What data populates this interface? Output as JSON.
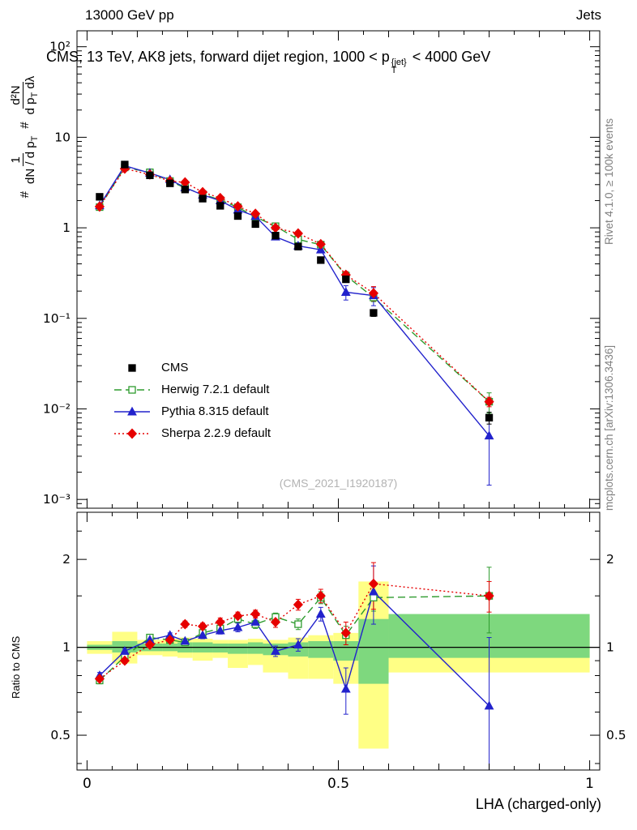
{
  "header": {
    "left": "13000 GeV pp",
    "right": "Jets"
  },
  "title": {
    "pre": "CMS, 13 TeV, AK8 jets, forward dijet region, 1000 < p",
    "sup": "{jet}",
    "sub": "T",
    "post": " < 4000 GeV"
  },
  "axis": {
    "ylabel": {
      "hash1": "#",
      "frac1_num": "1",
      "frac1_den_a": "dN / d p",
      "frac1_den_sub": "T",
      "hash2": "#",
      "frac2_num": "d²N",
      "frac2_den_a": "d p",
      "frac2_den_sub": "T",
      "frac2_den_b": " dλ"
    },
    "ratio_ylabel": "Ratio to CMS",
    "xlabel": "LHA (charged-only)"
  },
  "notes": {
    "rivet": "Rivet 4.1.0, ≥ 100k events",
    "mcplots": "mcplots.cern.ch [arXiv:1306.3436]",
    "watermark": "(CMS_2021_I1920187)"
  },
  "chart_data": {
    "type": "line",
    "title": "CMS, 13 TeV, AK8 jets, forward dijet region, 1000 < p_T^{jet} < 4000 GeV",
    "xlabel": "LHA (charged-only)",
    "ylabel": "# 1/(dN/dp_T) # d2N/(dp_T dlambda)",
    "ratio_ylabel": "Ratio to CMS",
    "legend_position": "middle-left",
    "grid": false,
    "ylog": true,
    "ylim": [
      0.0008,
      150
    ],
    "ratio_ylog": true,
    "ratio_ylim": [
      0.38,
      2.9
    ],
    "xlim": [
      0,
      1
    ],
    "x_axis_range": [
      -0.02,
      1.02
    ],
    "x": [
      0.025,
      0.075,
      0.125,
      0.165,
      0.195,
      0.23,
      0.265,
      0.3,
      0.335,
      0.375,
      0.42,
      0.465,
      0.515,
      0.57,
      0.8
    ],
    "bin_edges": [
      0,
      0.05,
      0.1,
      0.15,
      0.18,
      0.21,
      0.25,
      0.28,
      0.32,
      0.35,
      0.4,
      0.44,
      0.49,
      0.54,
      0.6,
      1.0
    ],
    "series": [
      {
        "name": "CMS",
        "color": "#000000",
        "marker": "square",
        "fill": "filled",
        "line": "none",
        "values": [
          2.2,
          5.0,
          3.8,
          3.1,
          2.65,
          2.1,
          1.75,
          1.35,
          1.1,
          0.82,
          0.62,
          0.44,
          0.27,
          0.115,
          0.008
        ],
        "errors": [
          0.12,
          0.25,
          0.2,
          0.15,
          0.13,
          0.1,
          0.09,
          0.07,
          0.06,
          0.04,
          0.03,
          0.022,
          0.015,
          0.01,
          0.0012
        ]
      },
      {
        "name": "Herwig 7.2.1 default",
        "color": "#2e9b2e",
        "marker": "square",
        "fill": "open",
        "line": "dashed",
        "ratio": [
          0.77,
          0.93,
          1.08,
          1.06,
          1.04,
          1.12,
          1.16,
          1.25,
          1.2,
          1.27,
          1.2,
          1.48,
          1.1,
          1.48,
          1.5
        ],
        "ratio_err": [
          0.02,
          0.02,
          0.02,
          0.02,
          0.02,
          0.03,
          0.03,
          0.04,
          0.04,
          0.04,
          0.05,
          0.07,
          0.08,
          0.15,
          0.38
        ]
      },
      {
        "name": "Pythia 8.315 default",
        "color": "#2222cc",
        "marker": "triangle",
        "fill": "filled",
        "line": "solid",
        "ratio": [
          0.8,
          0.97,
          1.06,
          1.1,
          1.05,
          1.1,
          1.14,
          1.17,
          1.22,
          0.97,
          1.02,
          1.3,
          0.72,
          1.55,
          0.63
        ],
        "ratio_err": [
          0.02,
          0.02,
          0.02,
          0.02,
          0.02,
          0.03,
          0.03,
          0.04,
          0.04,
          0.04,
          0.05,
          0.07,
          0.13,
          0.35,
          0.45
        ]
      },
      {
        "name": "Sherpa 2.2.9 default",
        "color": "#e60000",
        "marker": "diamond",
        "fill": "filled",
        "line": "dotted",
        "ratio": [
          0.78,
          0.9,
          1.02,
          1.06,
          1.2,
          1.18,
          1.22,
          1.28,
          1.3,
          1.22,
          1.4,
          1.5,
          1.12,
          1.65,
          1.5
        ],
        "ratio_err": [
          0.02,
          0.02,
          0.02,
          0.02,
          0.03,
          0.03,
          0.04,
          0.04,
          0.04,
          0.05,
          0.06,
          0.08,
          0.1,
          0.3,
          0.18
        ]
      }
    ],
    "bands": {
      "yellow": [
        [
          0.95,
          1.05
        ],
        [
          0.88,
          1.13
        ],
        [
          0.94,
          1.06
        ],
        [
          0.93,
          1.07
        ],
        [
          0.92,
          1.08
        ],
        [
          0.9,
          1.07
        ],
        [
          0.92,
          1.06
        ],
        [
          0.85,
          1.06
        ],
        [
          0.87,
          1.07
        ],
        [
          0.82,
          1.06
        ],
        [
          0.78,
          1.08
        ],
        [
          0.78,
          1.1
        ],
        [
          0.75,
          1.12
        ],
        [
          0.45,
          1.68
        ],
        [
          0.82,
          1.26
        ]
      ],
      "green": [
        [
          0.98,
          1.02
        ],
        [
          0.96,
          1.05
        ],
        [
          0.97,
          1.03
        ],
        [
          0.97,
          1.03
        ],
        [
          0.96,
          1.04
        ],
        [
          0.96,
          1.04
        ],
        [
          0.96,
          1.03
        ],
        [
          0.95,
          1.03
        ],
        [
          0.95,
          1.04
        ],
        [
          0.94,
          1.03
        ],
        [
          0.93,
          1.04
        ],
        [
          0.92,
          1.05
        ],
        [
          0.9,
          1.05
        ],
        [
          0.75,
          1.25
        ],
        [
          0.92,
          1.3
        ]
      ]
    },
    "band_colors": {
      "yellow": "#ffff85",
      "green": "#7ed87e"
    },
    "yticks": {
      "values": [
        100,
        10,
        1,
        0.1,
        0.01,
        0.001
      ],
      "labels": [
        "10²",
        "10",
        "1",
        "10⁻¹",
        "10⁻²",
        "10⁻³"
      ]
    },
    "ratio_yticks": {
      "values": [
        2,
        1,
        0.5
      ],
      "labels": [
        "2",
        "1",
        "0.5"
      ]
    },
    "ratio_minor_ticks": [
      0.4,
      0.5,
      0.6,
      0.7,
      0.8,
      0.9,
      1,
      1.5,
      2,
      2.5
    ],
    "xticks": {
      "values": [
        0,
        0.5,
        1
      ],
      "labels": [
        "0",
        "0.5",
        "1"
      ]
    }
  }
}
